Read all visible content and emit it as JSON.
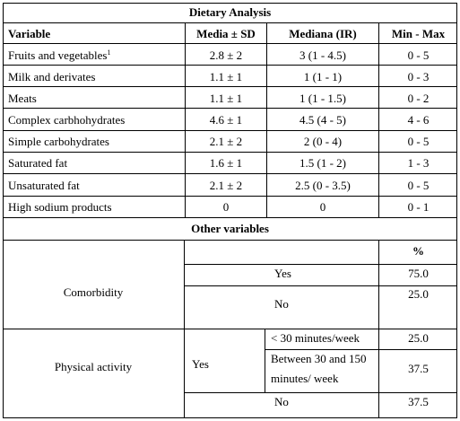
{
  "title": "Dietary Analysis",
  "headers": {
    "variable": "Variable",
    "mean": "Media ± SD",
    "median": "Mediana (IR)",
    "range": "Min - Max"
  },
  "rows": [
    {
      "variable": "Fruits and vegetables",
      "footnote": "1",
      "mean": "2.8 ± 2",
      "median": "3 (1 - 4.5)",
      "range": "0 - 5"
    },
    {
      "variable": "Milk and derivates",
      "mean": "1.1 ± 1",
      "median": "1 (1 - 1)",
      "range": "0 - 3"
    },
    {
      "variable": "Meats",
      "mean": "1.1 ± 1",
      "median": "1 (1 - 1.5)",
      "range": "0 - 2"
    },
    {
      "variable": "Complex carbhohydrates",
      "mean": "4.6 ± 1",
      "median": "4.5 (4 - 5)",
      "range": "4 - 6"
    },
    {
      "variable": "Simple carbohydrates",
      "mean": "2.1 ± 2",
      "median": "2 (0 - 4)",
      "range": "0 - 5"
    },
    {
      "variable": "Saturated fat",
      "mean": "1.6 ± 1",
      "median": "1.5 (1 - 2)",
      "range": "1 - 3"
    },
    {
      "variable": "Unsaturated fat",
      "mean": "2.1 ± 2",
      "median": "2.5 (0 - 3.5)",
      "range": "0 - 5"
    },
    {
      "variable": "High sodium products",
      "mean": "0",
      "median": "0",
      "range": "0 - 1"
    }
  ],
  "other": {
    "title": "Other variables",
    "pct_header": "%",
    "comorbidity": {
      "label": "Comorbidity",
      "yes": "Yes",
      "yes_pct": "75.0",
      "no": "No",
      "no_pct": "25.0"
    },
    "activity": {
      "label": "Physical activity",
      "yes": "Yes",
      "lt30": "< 30 minutes/week",
      "lt30_pct": "25.0",
      "between_1": "Between 30 and 150",
      "between_2": "minutes/ week",
      "between_pct": "37.5",
      "no": "No",
      "no_pct": "37.5"
    }
  }
}
